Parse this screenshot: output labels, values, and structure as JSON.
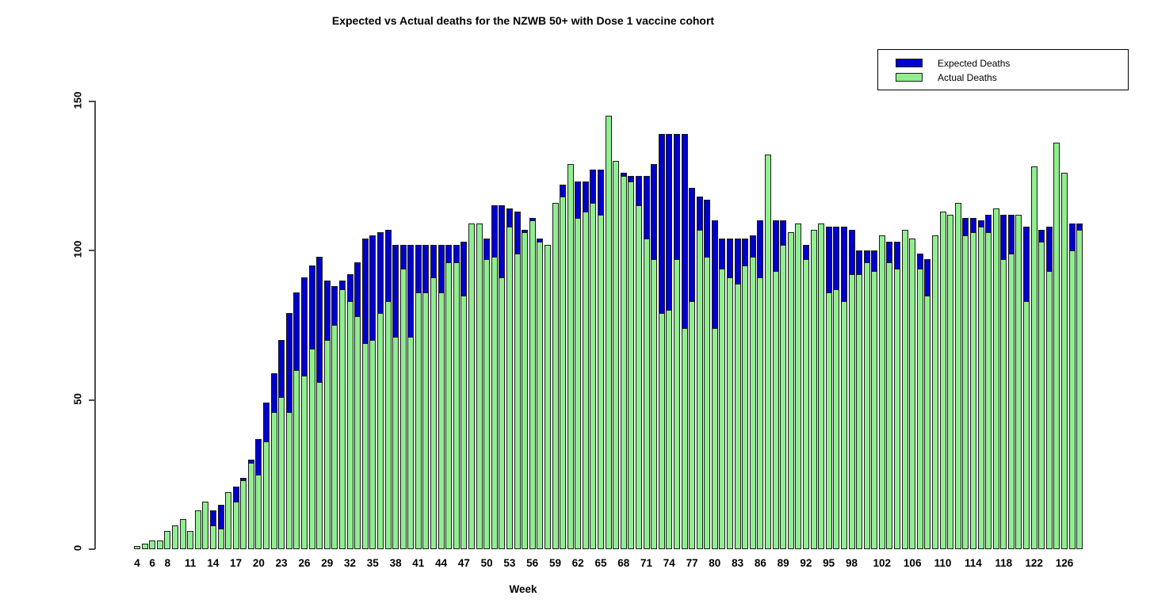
{
  "chart_data": {
    "type": "bar",
    "title": "Expected vs Actual deaths for the NZWB 50+ with Dose 1 vaccine cohort",
    "xlabel": "Week",
    "ylabel": "",
    "ylim": [
      0,
      150
    ],
    "yticks": [
      0,
      50,
      100,
      150
    ],
    "grid": false,
    "legend_position": "top-right",
    "legend": [
      {
        "label": "Expected Deaths",
        "color": "#0000cc"
      },
      {
        "label": "Actual Deaths",
        "color": "#90ee90"
      }
    ],
    "x_tick_labels": [
      4,
      6,
      8,
      11,
      14,
      17,
      20,
      23,
      26,
      29,
      32,
      35,
      38,
      41,
      44,
      47,
      50,
      53,
      56,
      59,
      62,
      65,
      68,
      71,
      74,
      77,
      80,
      83,
      86,
      89,
      92,
      95,
      98,
      102,
      106,
      110,
      114,
      118,
      122,
      126
    ],
    "weeks": [
      4,
      5,
      6,
      7,
      8,
      9,
      10,
      11,
      12,
      13,
      14,
      15,
      16,
      17,
      18,
      19,
      20,
      21,
      22,
      23,
      24,
      25,
      26,
      27,
      28,
      29,
      30,
      31,
      32,
      33,
      34,
      35,
      36,
      37,
      38,
      39,
      40,
      41,
      42,
      43,
      44,
      45,
      46,
      47,
      48,
      49,
      50,
      51,
      52,
      53,
      54,
      55,
      56,
      57,
      58,
      59,
      60,
      61,
      62,
      63,
      64,
      65,
      66,
      67,
      68,
      69,
      70,
      71,
      72,
      73,
      74,
      75,
      76,
      77,
      78,
      79,
      80,
      81,
      82,
      83,
      84,
      85,
      86,
      87,
      88,
      89,
      90,
      91,
      92,
      93,
      94,
      95,
      96,
      97,
      98,
      99,
      100,
      101,
      102,
      103,
      104,
      105,
      106,
      107,
      108,
      109,
      110,
      111,
      112,
      113,
      114,
      115,
      116,
      117,
      118,
      119,
      120,
      121,
      122,
      123,
      124,
      125,
      126,
      127,
      128
    ],
    "series": [
      {
        "name": "Expected Deaths",
        "values": [
          0.5,
          1,
          1.5,
          2,
          3,
          4,
          5,
          5.5,
          8,
          10,
          13,
          15,
          17,
          21,
          24,
          30,
          37,
          49,
          59,
          70,
          79,
          86,
          91,
          95,
          98,
          90,
          88,
          90,
          92,
          96,
          104,
          105,
          106,
          107,
          102,
          102,
          102,
          102,
          102,
          102,
          102,
          102,
          102,
          103,
          100,
          100,
          104,
          115,
          115,
          114,
          113,
          107,
          111,
          104,
          101,
          110,
          122,
          124,
          123,
          123,
          127,
          127,
          128,
          128,
          126,
          125,
          125,
          125,
          129,
          139,
          139,
          139,
          139,
          121,
          118,
          117,
          110,
          104,
          104,
          104,
          104,
          105,
          110,
          105,
          110,
          110,
          104,
          104,
          102,
          103,
          105,
          108,
          108,
          108,
          107,
          100,
          100,
          100,
          100,
          103,
          103,
          102,
          102,
          99,
          97,
          100,
          105,
          107,
          108,
          111,
          111,
          110,
          112,
          110,
          112,
          112,
          108,
          108,
          108,
          107,
          108,
          109,
          110,
          109,
          109
        ]
      },
      {
        "name": "Actual Deaths",
        "values": [
          1,
          2,
          3,
          3,
          6,
          8,
          10,
          6,
          13,
          16,
          8,
          7,
          19,
          16,
          23,
          29,
          25,
          36,
          46,
          51,
          46,
          60,
          58,
          67,
          56,
          70,
          75,
          87,
          83,
          78,
          69,
          70,
          79,
          83,
          71,
          94,
          71,
          86,
          86,
          91,
          86,
          96,
          96,
          85,
          109,
          109,
          97,
          98,
          91,
          108,
          99,
          106,
          110,
          103,
          102,
          116,
          118,
          129,
          111,
          113,
          116,
          112,
          145,
          130,
          125,
          123,
          115,
          104,
          97,
          79,
          80,
          97,
          74,
          83,
          107,
          98,
          74,
          94,
          91,
          89,
          95,
          98,
          91,
          132,
          93,
          102,
          106,
          109,
          97,
          107,
          109,
          86,
          87,
          83,
          92,
          92,
          96,
          93,
          105,
          96,
          94,
          107,
          104,
          94,
          85,
          105,
          113,
          112,
          116,
          105,
          106,
          108,
          106,
          114,
          97,
          99,
          112,
          83,
          128,
          103,
          93,
          136,
          126,
          100,
          107
        ]
      }
    ]
  }
}
